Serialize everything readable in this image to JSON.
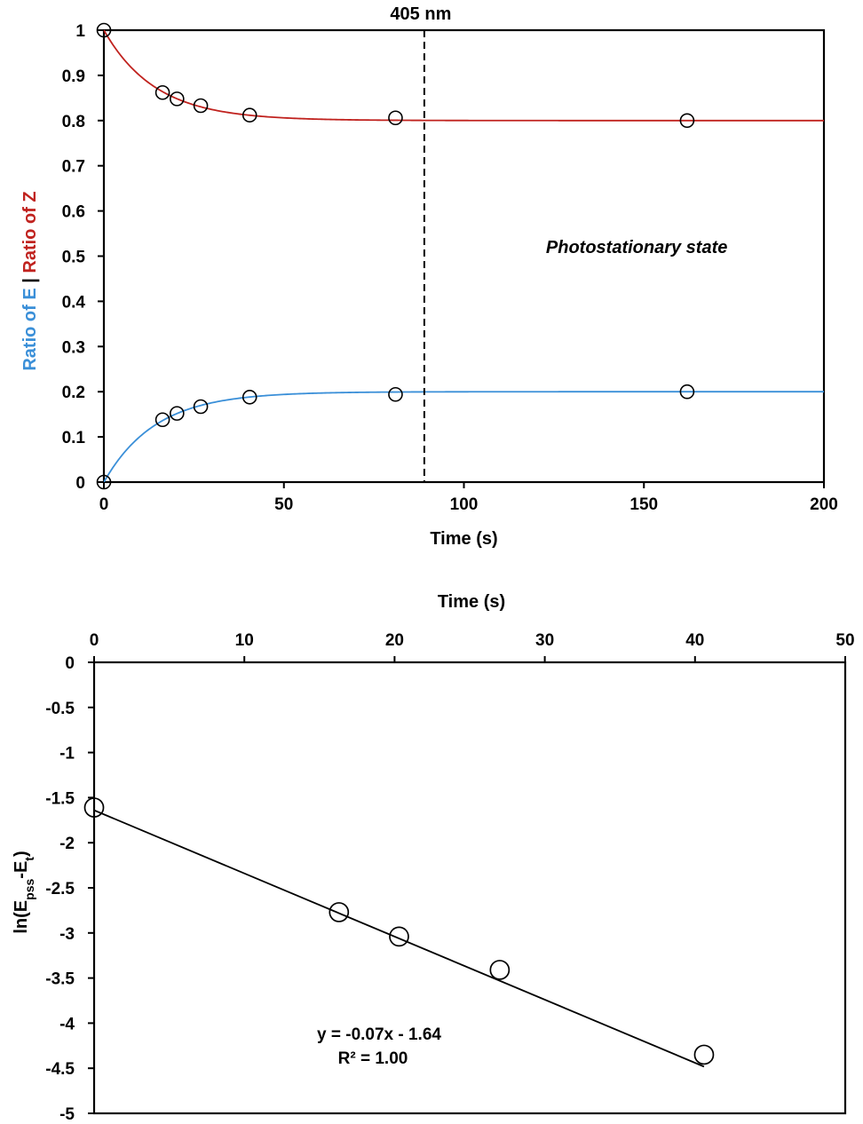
{
  "chart_data": [
    {
      "type": "scatter",
      "title": "",
      "xlabel": "Time (s)",
      "ylabel_parts": [
        {
          "text": "Ratio of E",
          "color": "#3a8fd8"
        },
        {
          "text": " | ",
          "color": "#000000"
        },
        {
          "text": "Ratio of Z",
          "color": "#c0221e"
        }
      ],
      "xlim": [
        0,
        200
      ],
      "ylim": [
        0,
        1
      ],
      "x_ticks": [
        0,
        50,
        100,
        150,
        200
      ],
      "y_ticks": [
        0,
        0.1,
        0.2,
        0.3,
        0.4,
        0.5,
        0.6,
        0.7,
        0.8,
        0.9,
        1
      ],
      "x_tick_labels": [
        "0",
        "50",
        "100",
        "150",
        "200"
      ],
      "y_tick_labels": [
        "0",
        "0.1",
        "0.2",
        "0.3",
        "0.4",
        "0.5",
        "0.6",
        "0.7",
        "0.8",
        "0.9",
        "1"
      ],
      "series": [
        {
          "name": "Ratio of Z",
          "color": "#c0221e",
          "x": [
            0,
            16.3,
            20.3,
            26.9,
            40.5,
            81,
            162
          ],
          "y": [
            1.0,
            0.862,
            0.848,
            0.833,
            0.812,
            0.806,
            0.8
          ]
        },
        {
          "name": "Ratio of E",
          "color": "#3a8fd8",
          "x": [
            0,
            16.3,
            20.3,
            26.9,
            40.5,
            81,
            162
          ],
          "y": [
            0.0,
            0.138,
            0.152,
            0.167,
            0.188,
            0.194,
            0.2
          ]
        }
      ],
      "fit_curves": [
        {
          "name": "Z fit",
          "color": "#c0221e",
          "start": 1.0,
          "plateau": 0.8,
          "k": 0.07
        },
        {
          "name": "E fit",
          "color": "#3a8fd8",
          "start": 0.0,
          "plateau": 0.2,
          "k": 0.07
        }
      ],
      "vline": {
        "x": 89,
        "label": "405 nm"
      },
      "annotation": "Photostationary state"
    },
    {
      "type": "scatter",
      "title": "",
      "xlabel": "Time (s)",
      "xaxis_position": "top",
      "ylabel_base": "ln(E",
      "ylabel_sub1": "pss",
      "ylabel_mid": "-E",
      "ylabel_sub2": "t",
      "ylabel_end": ")",
      "xlim": [
        0,
        50
      ],
      "ylim": [
        -5,
        0
      ],
      "x_ticks": [
        0,
        10,
        20,
        30,
        40,
        50
      ],
      "y_ticks": [
        0,
        -0.5,
        -1,
        -1.5,
        -2,
        -2.5,
        -3,
        -3.5,
        -4,
        -4.5,
        -5
      ],
      "x_tick_labels": [
        "0",
        "10",
        "20",
        "30",
        "40",
        "50"
      ],
      "y_tick_labels": [
        "0",
        "-0.5",
        "-1",
        "-1.5",
        "-2",
        "-2.5",
        "-3",
        "-3.5",
        "-4",
        "-4.5",
        "-5"
      ],
      "series": [
        {
          "name": "ln(Epss-Et)",
          "color": "#000000",
          "x": [
            0,
            16.3,
            20.3,
            27.0,
            40.6
          ],
          "y": [
            -1.61,
            -2.77,
            -3.04,
            -3.41,
            -4.35
          ]
        }
      ],
      "fit_line": {
        "slope": -0.07,
        "intercept": -1.64,
        "x_range": [
          0,
          40.6
        ]
      },
      "equation": "y = -0.07x - 1.64",
      "r_squared": "R² = 1.00"
    }
  ]
}
